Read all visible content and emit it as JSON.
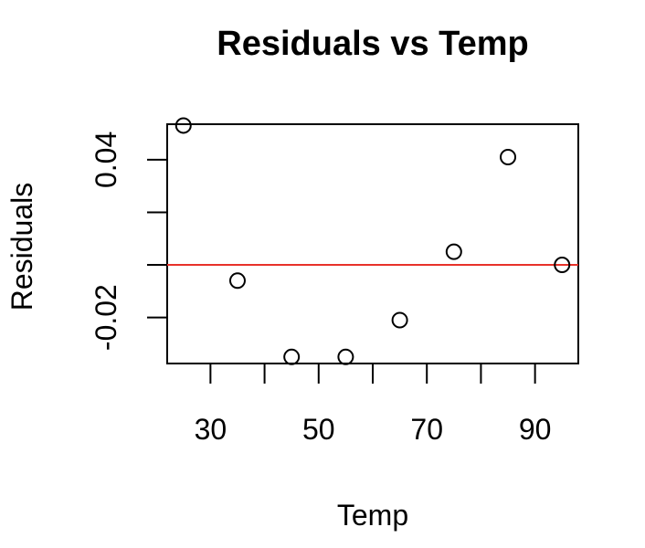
{
  "chart_data": {
    "type": "scatter",
    "title": "Residuals vs Temp",
    "xlabel": "Temp",
    "ylabel": "Residuals",
    "x_ticks": [
      "30",
      "50",
      "70",
      "90"
    ],
    "y_ticks": [
      "-0.02",
      "0.04"
    ],
    "x_minor_ticks": [
      30,
      40,
      50,
      60,
      70,
      80,
      90
    ],
    "y_minor_ticks": [
      -0.02,
      0.0,
      0.02,
      0.04
    ],
    "xlim": [
      22,
      98
    ],
    "ylim": [
      -0.0375,
      0.0535
    ],
    "reference_line": {
      "y": 0,
      "color": "#e8322a"
    },
    "points": [
      {
        "x": 25,
        "y": 0.053
      },
      {
        "x": 35,
        "y": -0.006
      },
      {
        "x": 45,
        "y": -0.035
      },
      {
        "x": 55,
        "y": -0.035
      },
      {
        "x": 65,
        "y": -0.021
      },
      {
        "x": 75,
        "y": 0.005
      },
      {
        "x": 85,
        "y": 0.041
      },
      {
        "x": 95,
        "y": 0.0
      }
    ],
    "grid": false,
    "legend": "none"
  }
}
